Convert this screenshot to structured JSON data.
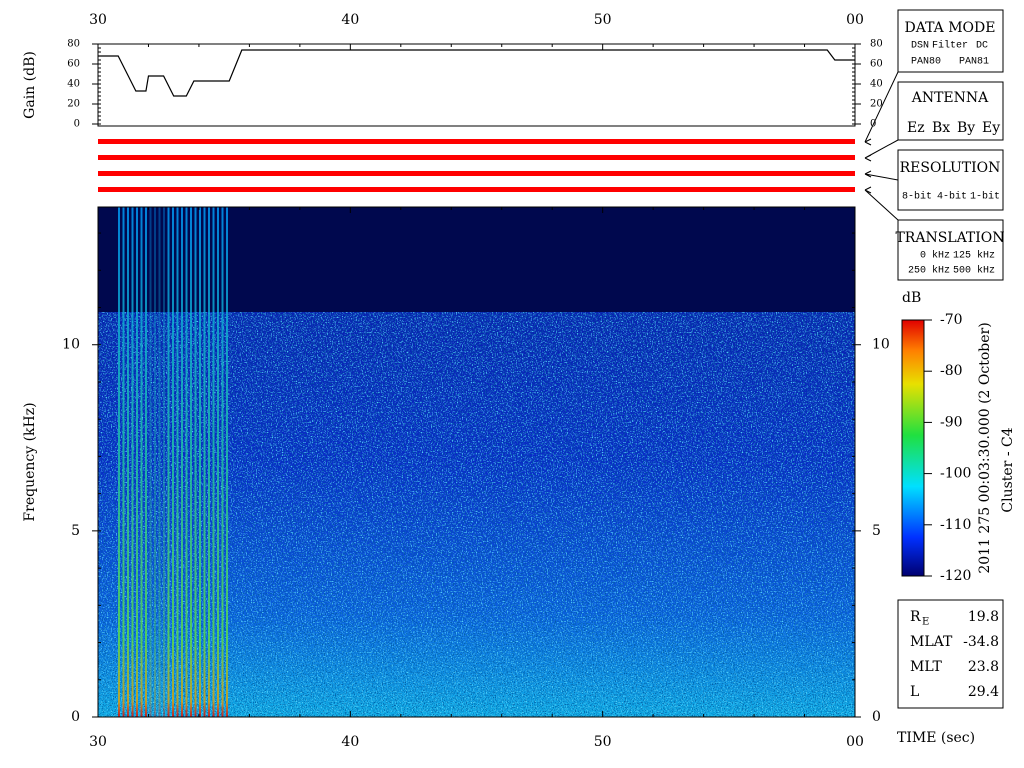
{
  "chart_data": [
    {
      "type": "line",
      "ylabel": "Gain (dB)",
      "x": [
        30,
        30.8,
        31.5,
        31.9,
        32.0,
        32.6,
        33.0,
        33.5,
        33.8,
        35.2,
        35.7,
        58.9,
        59.2,
        60
      ],
      "values": [
        68,
        68,
        33,
        33,
        48,
        48,
        28,
        28,
        43,
        43,
        74,
        74,
        64,
        64
      ],
      "color": "#000000",
      "xlim": [
        30,
        60
      ],
      "xticks": [
        30,
        40,
        50,
        {
          "value": 60,
          "label": "00"
        }
      ],
      "ylim": [
        0,
        80
      ],
      "yticks": [
        0,
        20,
        40,
        60,
        80
      ]
    },
    {
      "type": "heatmap",
      "ylabel": "Frequency (kHz)",
      "xlabel": "TIME (sec)",
      "xlim": [
        30,
        60
      ],
      "xticks": [
        30,
        40,
        50,
        {
          "value": 60,
          "label": "00"
        }
      ],
      "ylim": [
        0,
        13.7
      ],
      "yticks": [
        0,
        5,
        10
      ],
      "colorbar": {
        "label": "dB",
        "lim": [
          -120,
          -70
        ],
        "ticks": [
          -120,
          -110,
          -100,
          -90,
          -80,
          -70
        ]
      },
      "annotations": [
        "2011 275 00:03:30.000 (2 October)",
        "Cluster - C4"
      ]
    }
  ],
  "panels": {
    "data_mode": {
      "title": "DATA MODE",
      "items": [
        [
          "DSN",
          "Filter",
          "DC"
        ],
        [
          "PAN80",
          "PAN81"
        ]
      ]
    },
    "antenna": {
      "title": "ANTENNA",
      "items": [
        "Ez",
        "Bx",
        "By",
        "Ey"
      ]
    },
    "resolution": {
      "title": "RESOLUTION",
      "items": [
        "8-bit",
        "4-bit",
        "1-bit"
      ]
    },
    "translation": {
      "title": "TRANSLATION",
      "items": [
        [
          "0 kHz",
          "125 kHz"
        ],
        [
          "250 kHz",
          "500 kHz"
        ]
      ]
    }
  },
  "position": [
    {
      "label": "R",
      "sub": "E",
      "value": 19.8
    },
    {
      "label": "MLAT",
      "value": -34.8
    },
    {
      "label": "MLT",
      "value": 23.8
    },
    {
      "label": "L",
      "value": 29.4
    }
  ]
}
